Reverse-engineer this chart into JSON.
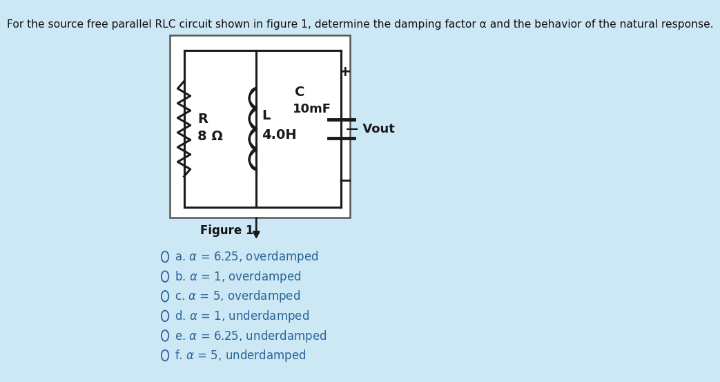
{
  "background_color": "#cde8f5",
  "title_text": "For the source free parallel RLC circuit shown in figure 1, determine the damping factor α and the behavior of the natural response.",
  "title_fontsize": 11.2,
  "choices": [
    {
      "letter": "a",
      "eq": "6.25",
      "behavior": "overdamped"
    },
    {
      "letter": "b",
      "eq": "1",
      "behavior": "overdamped"
    },
    {
      "letter": "c",
      "eq": "5",
      "behavior": "overdamped"
    },
    {
      "letter": "d",
      "eq": "1",
      "behavior": "underdamped"
    },
    {
      "letter": "e",
      "eq": "6.25",
      "behavior": "underdamped"
    },
    {
      "letter": "f",
      "eq": "5",
      "behavior": "underdamped"
    }
  ],
  "choice_fontsize": 12,
  "text_color": "#2a6496",
  "box_color": "#2a6496",
  "circuit_line_color": "#1a1a1a",
  "label_color": "#1a1a1a"
}
